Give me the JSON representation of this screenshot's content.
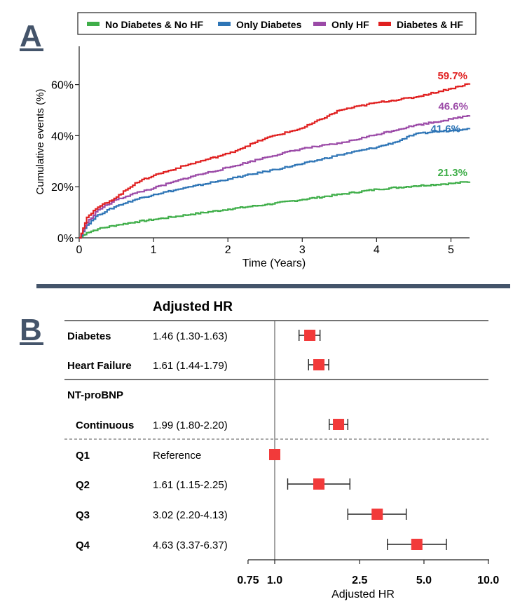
{
  "panel_a": {
    "letter": "A",
    "chart_data": {
      "type": "line",
      "title": "",
      "xlabel": "Time (Years)",
      "ylabel": "Cumulative events (%)",
      "xlim": [
        0,
        5.25
      ],
      "ylim": [
        0,
        75
      ],
      "x_ticks": [
        0,
        1,
        2,
        3,
        4,
        5
      ],
      "x_tick_labels": [
        "0",
        "1",
        "2",
        "3",
        "4",
        "5"
      ],
      "y_ticks": [
        0,
        20,
        40,
        60
      ],
      "y_tick_labels": [
        "0%",
        "20%",
        "40%",
        "60%"
      ],
      "grid": false,
      "legend_position": "top",
      "series": [
        {
          "name": "No Diabetes & No HF",
          "color": "#3fae49",
          "end_label": "21.3%",
          "x": [
            0,
            0.1,
            0.25,
            0.5,
            0.75,
            1,
            1.5,
            2,
            2.5,
            3,
            3.5,
            4,
            4.5,
            5,
            5.25
          ],
          "y": [
            0,
            2,
            3.5,
            5,
            6.2,
            7.2,
            9.2,
            11.2,
            13,
            15,
            17,
            19,
            20.3,
            21.3,
            22
          ]
        },
        {
          "name": "Only Diabetes",
          "color": "#2e75b6",
          "end_label": "41.6%",
          "x": [
            0,
            0.1,
            0.25,
            0.5,
            0.75,
            1,
            1.5,
            2,
            2.5,
            3,
            3.5,
            4,
            4.25,
            4.5,
            4.75,
            5,
            5.25
          ],
          "y": [
            0,
            5,
            9,
            12.5,
            15,
            17,
            20,
            23,
            26,
            29,
            32.5,
            35.5,
            37.5,
            40.5,
            41.5,
            42,
            43
          ]
        },
        {
          "name": "Only HF",
          "color": "#9b4aa7",
          "end_label": "46.6%",
          "x": [
            0,
            0.1,
            0.25,
            0.5,
            0.75,
            1,
            1.5,
            2,
            2.5,
            3,
            3.5,
            4,
            4.5,
            5,
            5.25
          ],
          "y": [
            0,
            6,
            11,
            15,
            17.5,
            19.5,
            24,
            27.5,
            31.5,
            35,
            37,
            40.5,
            44,
            46.5,
            48
          ]
        },
        {
          "name": "Diabetes & HF",
          "color": "#e02020",
          "end_label": "59.7%",
          "x": [
            0,
            0.1,
            0.25,
            0.5,
            0.75,
            1,
            1.5,
            2,
            2.5,
            3,
            3.5,
            4,
            4.5,
            5,
            5.25
          ],
          "y": [
            0,
            8,
            12,
            16,
            21.5,
            24.5,
            29,
            33,
            39,
            43,
            50,
            53,
            55,
            58.5,
            60.5
          ]
        }
      ]
    }
  },
  "panel_b": {
    "letter": "B",
    "column_header": "Adjusted HR",
    "nt_section_label": "NT-proBNP",
    "chart_data": {
      "type": "scatter",
      "title": "Adjusted HR",
      "xlabel": "Adjusted HR",
      "ylabel": "",
      "x_scale": "log",
      "xlim": [
        0.75,
        10.0
      ],
      "x_ticks": [
        0.75,
        1.0,
        2.5,
        5.0,
        10.0
      ],
      "x_tick_labels": [
        "0.75",
        "1.0",
        "2.5",
        "5.0",
        "10.0"
      ],
      "reference_line": 1.0,
      "marker_color": "#f23a3a",
      "rows": [
        {
          "label": "Diabetes",
          "text": "1.46 (1.30-1.63)",
          "hr": 1.46,
          "lo": 1.3,
          "hi": 1.63
        },
        {
          "label": "Heart Failure",
          "text": "1.61 (1.44-1.79)",
          "hr": 1.61,
          "lo": 1.44,
          "hi": 1.79
        },
        {
          "label": "Continuous",
          "text": "1.99 (1.80-2.20)",
          "hr": 1.99,
          "lo": 1.8,
          "hi": 2.2
        },
        {
          "label": "Q1",
          "text": "Reference",
          "hr": 1.0,
          "lo": null,
          "hi": null
        },
        {
          "label": "Q2",
          "text": "1.61 (1.15-2.25)",
          "hr": 1.61,
          "lo": 1.15,
          "hi": 2.25
        },
        {
          "label": "Q3",
          "text": "3.02 (2.20-4.13)",
          "hr": 3.02,
          "lo": 2.2,
          "hi": 4.13
        },
        {
          "label": "Q4",
          "text": "4.63 (3.37-6.37)",
          "hr": 4.63,
          "lo": 3.37,
          "hi": 6.37
        }
      ]
    }
  },
  "colors": {
    "divider": "#44546a",
    "letter": "#44546a"
  }
}
